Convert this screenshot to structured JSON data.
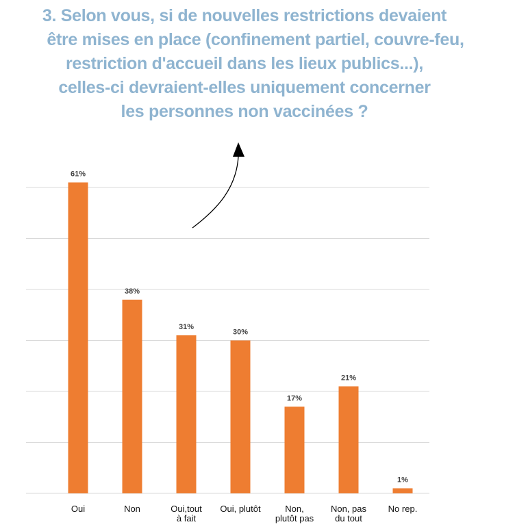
{
  "title": {
    "lines": [
      "3. Selon vous, si de nouvelles restrictions devaient",
      "être mises en place (confinement partiel, couvre-feu,",
      "restriction d'accueil dans les lieux publics...),",
      "celles-ci devraient-elles uniquement concerner",
      "les personnes non vaccinées ?"
    ]
  },
  "colors": {
    "title": "#8fb4d0",
    "bar": "#ee7d31",
    "grid": "#d9d9d9",
    "arrow": "#000000"
  },
  "chart_data": {
    "type": "bar",
    "title": "3. Selon vous, si de nouvelles restrictions devaient être mises en place (confinement partiel, couvre-feu, restriction d'accueil dans les lieux publics...), celles-ci devraient-elles uniquement concerner les personnes non vaccinées ?",
    "categories": [
      [
        "Oui"
      ],
      [
        "Non"
      ],
      [
        "Oui,tout",
        "à fait"
      ],
      [
        "Oui, plutôt"
      ],
      [
        "Non,",
        "plutôt pas"
      ],
      [
        "Non, pas",
        "du tout"
      ],
      [
        "No rep."
      ]
    ],
    "values": [
      61,
      38,
      31,
      30,
      17,
      21,
      1
    ],
    "data_labels": [
      "61%",
      "38%",
      "31%",
      "30%",
      "17%",
      "21%",
      "1%"
    ],
    "unit": "%",
    "ylim": [
      0,
      60
    ],
    "grid": true,
    "legend": "none",
    "annotation": "arrow"
  }
}
